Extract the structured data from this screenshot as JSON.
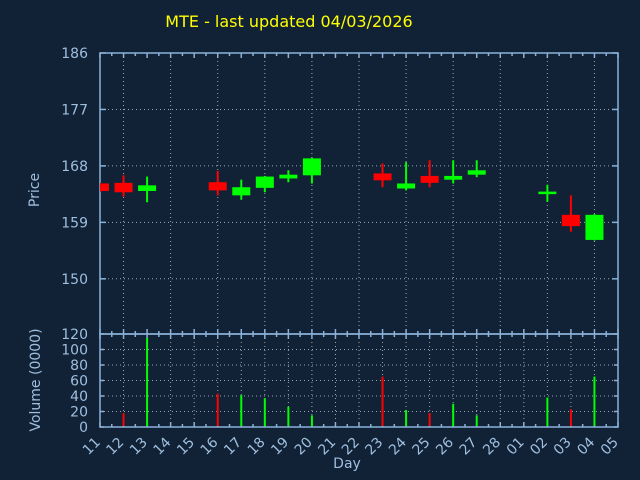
{
  "colors": {
    "background": "#122236",
    "frame": "#8ab1d8",
    "grid": "#9aa8b6",
    "text": "#9fbfdf",
    "title": "#ffff00",
    "up": "#00ff00",
    "down": "#ff0000"
  },
  "chart_data": {
    "type": "candlestick",
    "title": "MTE - last updated 04/03/2026",
    "legend": "none",
    "grid": true,
    "price_axis": {
      "label": "Price",
      "ticks": [
        150,
        159,
        168,
        177,
        186
      ],
      "range": [
        141.2,
        186
      ]
    },
    "volume_axis": {
      "label": "Volume (0000)",
      "ticks": [
        0,
        20,
        40,
        60,
        80,
        100,
        120
      ],
      "range": [
        0,
        120
      ]
    },
    "x_axis": {
      "label": "Day",
      "tick_labels": [
        "11",
        "12",
        "13",
        "14",
        "15",
        "16",
        "17",
        "18",
        "19",
        "20",
        "21",
        "22",
        "23",
        "24",
        "25",
        "26",
        "27",
        "28",
        "01",
        "02",
        "03",
        "04",
        "05"
      ]
    },
    "candles": [
      {
        "day": "11",
        "open": 165.2,
        "high": 165.3,
        "low": 163.9,
        "close": 164.0,
        "volume": null
      },
      {
        "day": "12",
        "open": 165.3,
        "high": 166.5,
        "low": 163.1,
        "close": 163.8,
        "volume": 18
      },
      {
        "day": "13",
        "open": 164.0,
        "high": 166.3,
        "low": 162.2,
        "close": 164.9,
        "volume": 115
      },
      {
        "day": "16",
        "open": 165.4,
        "high": 167.2,
        "low": 163.3,
        "close": 164.1,
        "volume": 43
      },
      {
        "day": "17",
        "open": 163.3,
        "high": 165.8,
        "low": 162.6,
        "close": 164.6,
        "volume": 41
      },
      {
        "day": "18",
        "open": 164.5,
        "high": 166.4,
        "low": 163.8,
        "close": 166.3,
        "volume": 37
      },
      {
        "day": "19",
        "open": 166.0,
        "high": 167.3,
        "low": 165.4,
        "close": 166.6,
        "volume": 26
      },
      {
        "day": "20",
        "open": 166.5,
        "high": 169.3,
        "low": 165.2,
        "close": 169.2,
        "volume": 15
      },
      {
        "day": "23",
        "open": 166.8,
        "high": 168.4,
        "low": 164.6,
        "close": 165.7,
        "volume": 65
      },
      {
        "day": "24",
        "open": 164.4,
        "high": 168.6,
        "low": 164.1,
        "close": 165.2,
        "volume": 22
      },
      {
        "day": "25",
        "open": 166.4,
        "high": 168.9,
        "low": 164.6,
        "close": 165.3,
        "volume": 18
      },
      {
        "day": "26",
        "open": 165.8,
        "high": 168.9,
        "low": 165.2,
        "close": 166.4,
        "volume": 30
      },
      {
        "day": "27",
        "open": 166.6,
        "high": 168.9,
        "low": 166.2,
        "close": 167.3,
        "volume": 15
      },
      {
        "day": "02",
        "open": 163.5,
        "high": 165.0,
        "low": 162.3,
        "close": 163.9,
        "volume": 38
      },
      {
        "day": "03",
        "open": 160.2,
        "high": 163.3,
        "low": 157.5,
        "close": 158.4,
        "volume": 23
      },
      {
        "day": "04",
        "open": 156.2,
        "high": 160.3,
        "low": 156.1,
        "close": 160.2,
        "volume": 65
      }
    ]
  }
}
